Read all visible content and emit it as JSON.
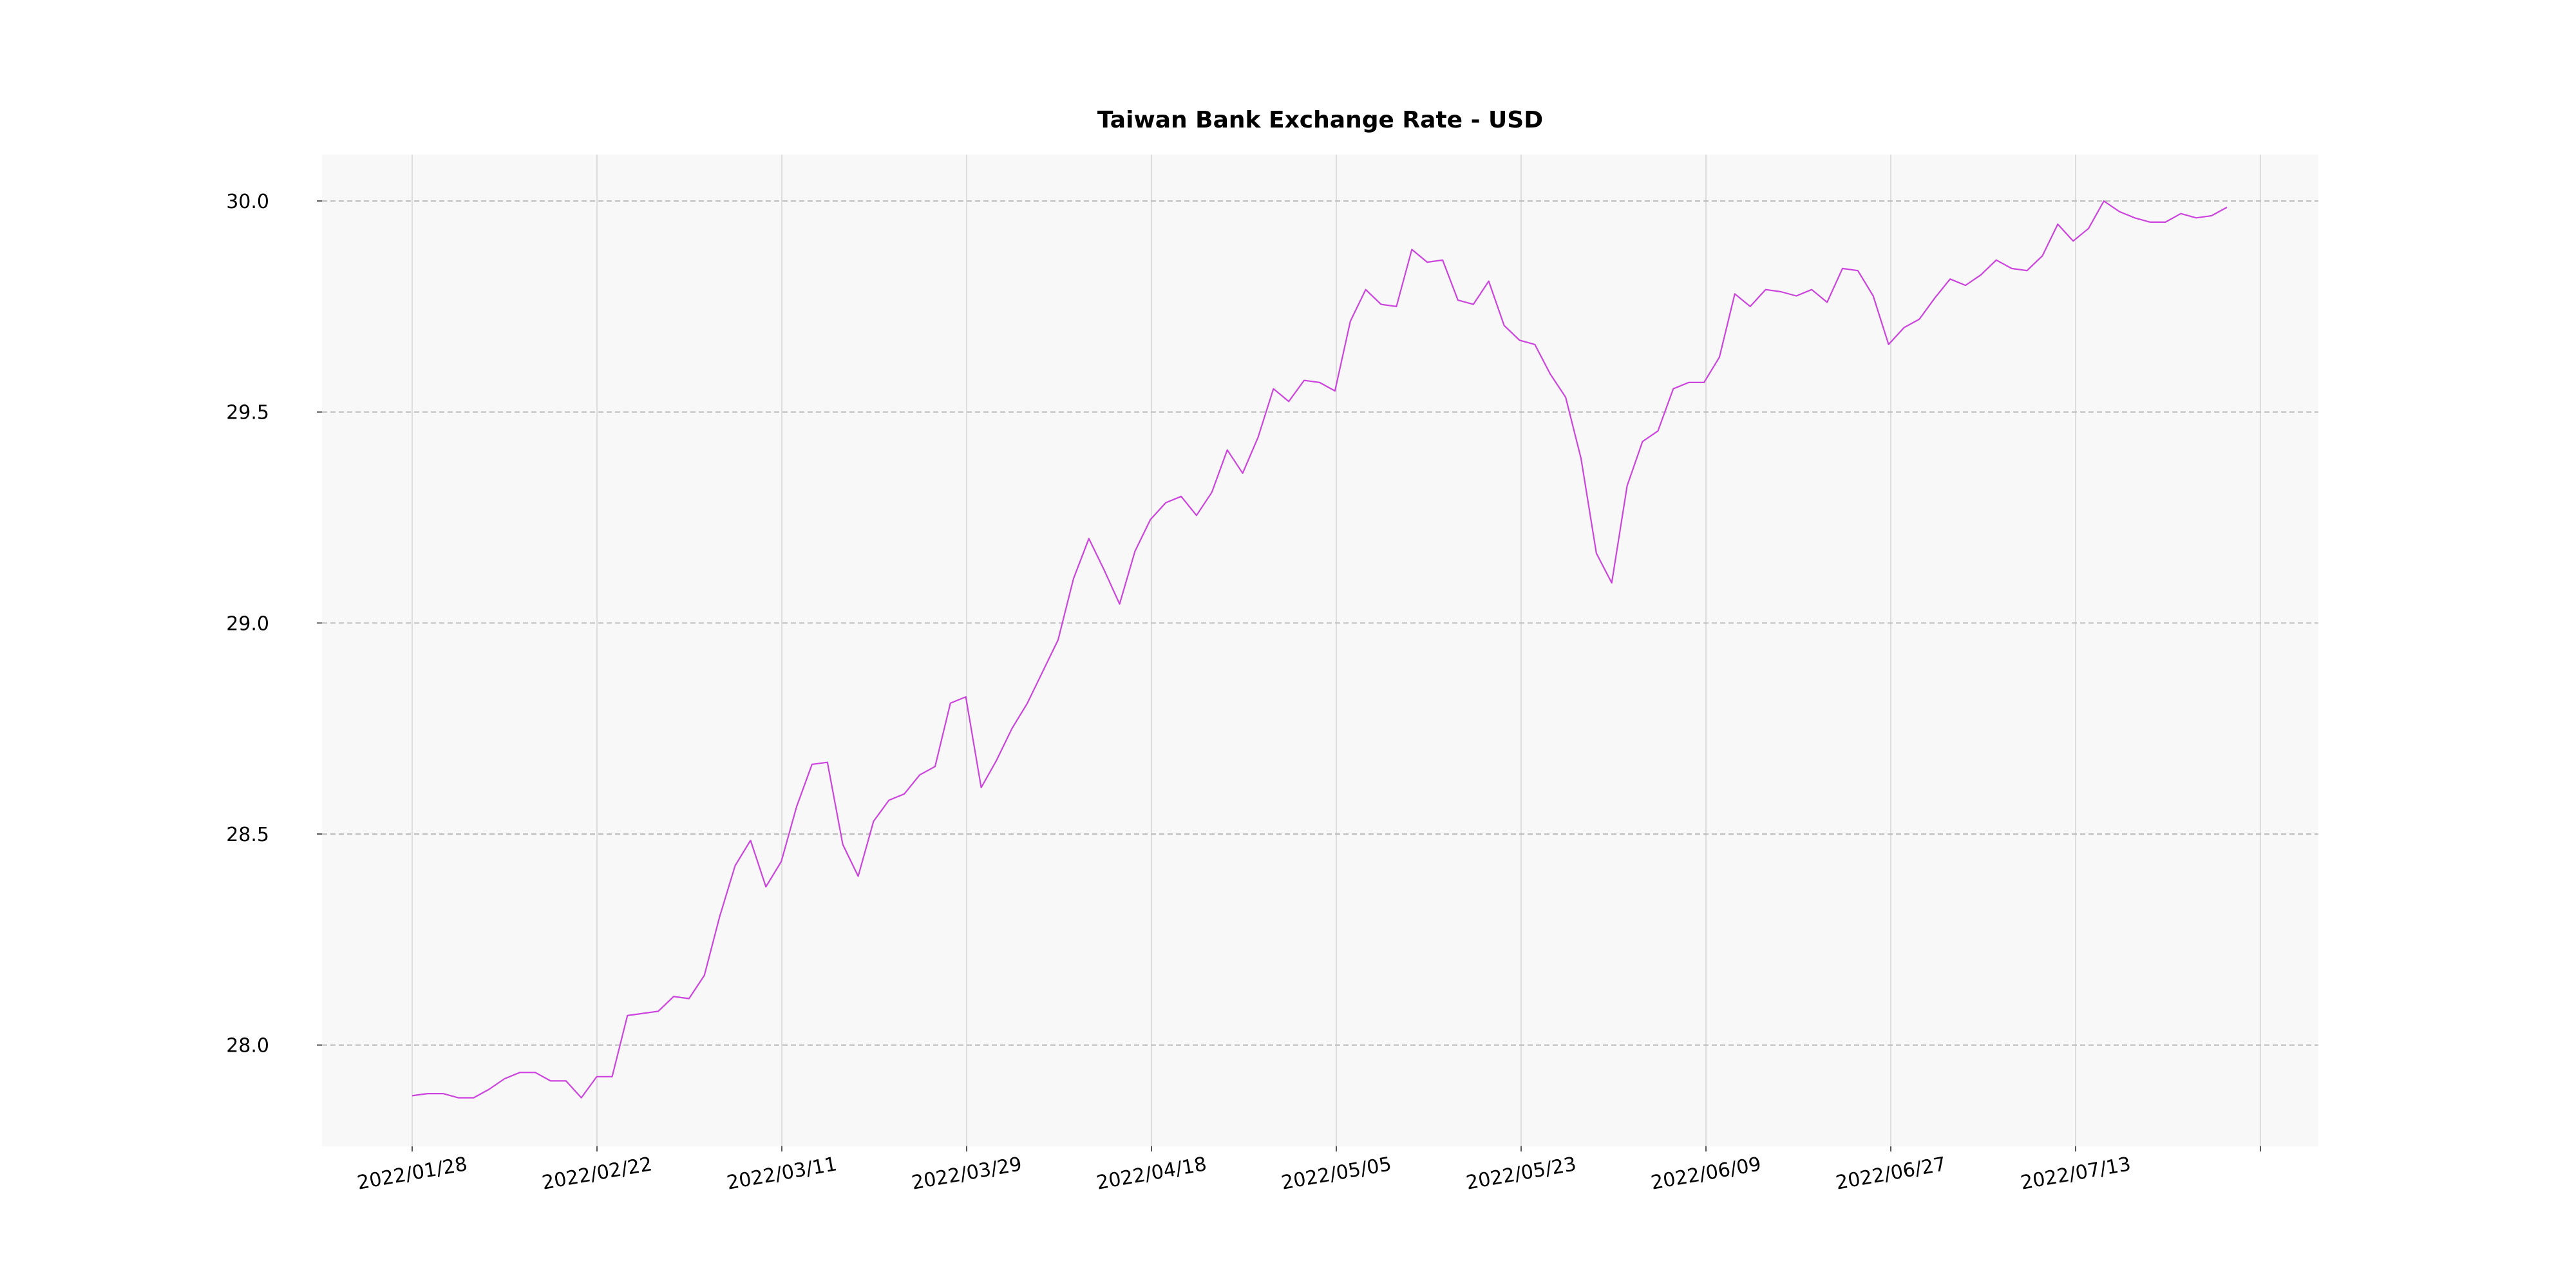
{
  "chart_data": {
    "type": "line",
    "title": "Taiwan Bank Exchange Rate - USD",
    "xlabel": "",
    "ylabel": "",
    "x_tick_labels": [
      "2022/01/28",
      "2022/02/22",
      "2022/03/11",
      "2022/03/29",
      "2022/04/18",
      "2022/05/05",
      "2022/05/23",
      "2022/06/09",
      "2022/06/27",
      "2022/07/13",
      ""
    ],
    "y_ticks": [
      28.0,
      28.5,
      29.0,
      29.5,
      30.0
    ],
    "y_tick_labels": [
      "28.0",
      "28.5",
      "29.0",
      "29.5",
      "30.0"
    ],
    "ylim": [
      27.76,
      30.11
    ],
    "grid": true,
    "legend": "none",
    "colors": {
      "line": "#cc44dd",
      "plot_background": "#f8f8f8",
      "grid_y": "#bbbbbb",
      "grid_x": "#dddddd"
    },
    "series": [
      {
        "values": [
          27.88,
          27.885,
          27.885,
          27.875,
          27.875,
          27.895,
          27.92,
          27.935,
          27.935,
          27.915,
          27.915,
          27.875,
          27.925,
          27.925,
          28.07,
          28.075,
          28.08,
          28.115,
          28.11,
          28.165,
          28.305,
          28.425,
          28.485,
          28.375,
          28.435,
          28.565,
          28.665,
          28.67,
          28.475,
          28.4,
          28.53,
          28.58,
          28.595,
          28.64,
          28.66,
          28.81,
          28.825,
          28.61,
          28.675,
          28.75,
          28.81,
          28.885,
          28.96,
          29.105,
          29.2,
          29.125,
          29.045,
          29.17,
          29.245,
          29.285,
          29.3,
          29.255,
          29.31,
          29.41,
          29.355,
          29.44,
          29.555,
          29.525,
          29.575,
          29.57,
          29.55,
          29.715,
          29.79,
          29.755,
          29.75,
          29.885,
          29.855,
          29.86,
          29.765,
          29.755,
          29.81,
          29.705,
          29.67,
          29.66,
          29.59,
          29.535,
          29.39,
          29.165,
          29.095,
          29.325,
          29.43,
          29.455,
          29.555,
          29.57,
          29.57,
          29.63,
          29.78,
          29.75,
          29.79,
          29.785,
          29.775,
          29.79,
          29.76,
          29.84,
          29.835,
          29.775,
          29.66,
          29.7,
          29.72,
          29.77,
          29.815,
          29.8,
          29.825,
          29.86,
          29.84,
          29.835,
          29.87,
          29.945,
          29.905,
          29.935,
          30.0,
          29.975,
          29.96,
          29.95,
          29.95,
          29.97,
          29.96,
          29.965,
          29.985
        ]
      }
    ]
  }
}
